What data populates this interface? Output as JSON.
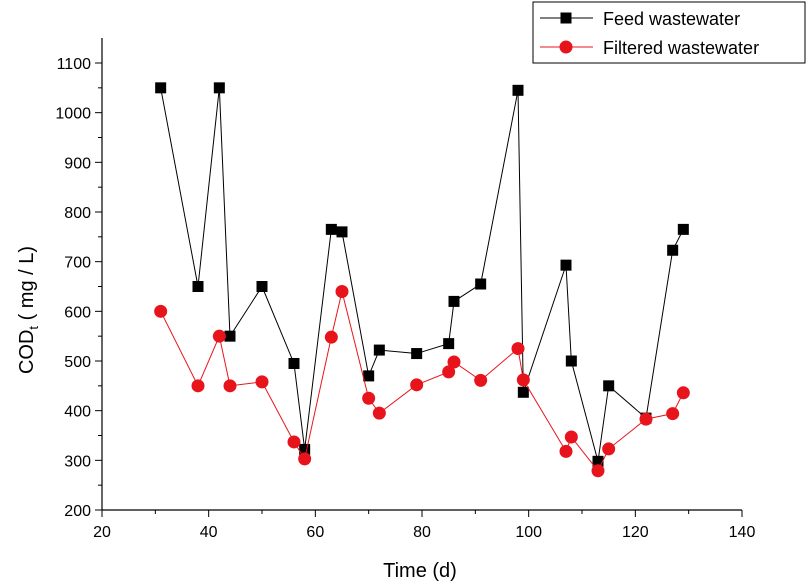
{
  "chart_data": {
    "type": "scatter",
    "xlabel": "Time (d)",
    "ylabel": "COD",
    "ylabel_sub": "t",
    "ylabel_unit": " ( mg / L)",
    "xlim": [
      20,
      140
    ],
    "ylim": [
      200,
      1100
    ],
    "xticks": [
      20,
      40,
      60,
      80,
      100,
      120,
      140
    ],
    "yticks": [
      200,
      300,
      400,
      500,
      600,
      700,
      800,
      900,
      1000,
      1100
    ],
    "grid": false,
    "legend_position": "top-right",
    "series": [
      {
        "name": "Feed wastewater",
        "color": "#000000",
        "marker": "square",
        "x": [
          31,
          38,
          42,
          44,
          50,
          56,
          58,
          63,
          65,
          70,
          72,
          79,
          85,
          86,
          91,
          98,
          99,
          107,
          108,
          113,
          115,
          122,
          127,
          129
        ],
        "y": [
          1050,
          650,
          1050,
          550,
          650,
          495,
          322,
          765,
          760,
          470,
          522,
          515,
          535,
          620,
          655,
          1045,
          437,
          693,
          500,
          298,
          450,
          385,
          723,
          765
        ]
      },
      {
        "name": "Filtered wastewater",
        "color": "#e8141b",
        "marker": "circle",
        "x": [
          31,
          38,
          42,
          44,
          50,
          56,
          58,
          63,
          65,
          70,
          72,
          79,
          85,
          86,
          91,
          98,
          99,
          107,
          108,
          113,
          115,
          122,
          127,
          129
        ],
        "y": [
          600,
          450,
          550,
          450,
          458,
          337,
          303,
          548,
          640,
          425,
          395,
          452,
          478,
          498,
          461,
          525,
          462,
          318,
          347,
          279,
          323,
          383,
          394,
          436
        ]
      }
    ]
  }
}
